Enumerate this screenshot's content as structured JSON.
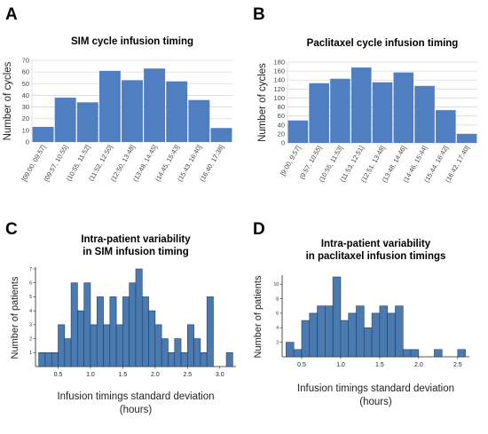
{
  "chart_data": [
    {
      "panel": "A",
      "type": "bar",
      "title": "SIM cycle infusion timing",
      "xlabel": "",
      "ylabel": "Number of cycles",
      "categories": [
        "[09:00, 09:57]",
        "(09:57, 10:55]",
        "(10:55, 11:52]",
        "(11:52, 12:50]",
        "(12:50, 13:48]",
        "(13:48, 14:45]",
        "(14:45, 15:43]",
        "(15:43, 16:40]",
        "(16:40, 17:38]"
      ],
      "values": [
        13,
        38,
        34,
        61,
        53,
        63,
        52,
        36,
        12
      ],
      "ylim": [
        0,
        70
      ],
      "yticks": [
        0,
        10,
        20,
        30,
        40,
        50,
        60,
        70
      ],
      "grid": true,
      "bar_color": "#4f7fc0"
    },
    {
      "panel": "B",
      "type": "bar",
      "title": "Paclitaxel cycle infusion timing",
      "xlabel": "",
      "ylabel": "Number of cycles",
      "categories": [
        "[9:00, 9:57]",
        "(9:57, 10:55]",
        "(10:55, 11:53]",
        "(11:53, 12:51]",
        "(12:51, 13:48]",
        "(13:48, 14:46]",
        "(14:46, 15:44]",
        "(15:44, 16:42]",
        "(16:42, 17:40]"
      ],
      "values": [
        50,
        133,
        143,
        168,
        135,
        157,
        127,
        73,
        20
      ],
      "ylim": [
        0,
        180
      ],
      "yticks": [
        0,
        20,
        40,
        60,
        80,
        100,
        120,
        140,
        160,
        180
      ],
      "grid": true,
      "bar_color": "#4f7fc0"
    },
    {
      "panel": "C",
      "type": "bar",
      "title": "Intra-patient variability\nin SIM infusion timing",
      "xlabel": "Infusion timings standard deviation\n(hours)",
      "ylabel": "Number of patients",
      "bin_width": 0.1,
      "bin_starts": [
        0.2,
        0.3,
        0.4,
        0.5,
        0.6,
        0.7,
        0.8,
        0.9,
        1.0,
        1.1,
        1.2,
        1.3,
        1.4,
        1.5,
        1.6,
        1.7,
        1.8,
        1.9,
        2.0,
        2.1,
        2.2,
        2.3,
        2.4,
        2.5,
        2.6,
        2.7,
        2.8,
        2.9,
        3.0,
        3.1
      ],
      "values": [
        1,
        1,
        1,
        3,
        2,
        6,
        4,
        6,
        3,
        5,
        3,
        5,
        3,
        5,
        6,
        7,
        5,
        4,
        3,
        2,
        1,
        2,
        1,
        3,
        2,
        1,
        5,
        0,
        0,
        1
      ],
      "xlim": [
        0.15,
        3.25
      ],
      "ylim": [
        0,
        7
      ],
      "xticks": [
        "0.5",
        "1.0",
        "1.5",
        "2.0",
        "2.5",
        "3.0"
      ],
      "yticks": [
        "1",
        "2",
        "3",
        "4",
        "5",
        "6",
        "7"
      ],
      "grid": false,
      "bar_color": "#4a7ab0"
    },
    {
      "panel": "D",
      "type": "bar",
      "title": "Intra-patient variability\nin paclitaxel infusion timings",
      "xlabel": "Infusion timings standard deviation\n(hours)",
      "ylabel": "Number of patients",
      "bin_width": 0.1,
      "bin_starts": [
        0.3,
        0.4,
        0.5,
        0.6,
        0.7,
        0.8,
        0.9,
        1.0,
        1.1,
        1.2,
        1.3,
        1.4,
        1.5,
        1.6,
        1.7,
        1.8,
        1.9,
        2.0,
        2.1,
        2.2,
        2.3,
        2.4,
        2.5
      ],
      "values": [
        2,
        1,
        5,
        6,
        7,
        7,
        11,
        5,
        6,
        7,
        4,
        6,
        7,
        6,
        7,
        1,
        1,
        0,
        0,
        1,
        0,
        0,
        1
      ],
      "xlim": [
        0.25,
        2.65
      ],
      "ylim": [
        0,
        11
      ],
      "xticks": [
        "0.5",
        "1.0",
        "1.5",
        "2.0",
        "2.5"
      ],
      "yticks": [
        "2",
        "4",
        "6",
        "8",
        "10"
      ],
      "grid": false,
      "bar_color": "#4a7ab0"
    }
  ]
}
